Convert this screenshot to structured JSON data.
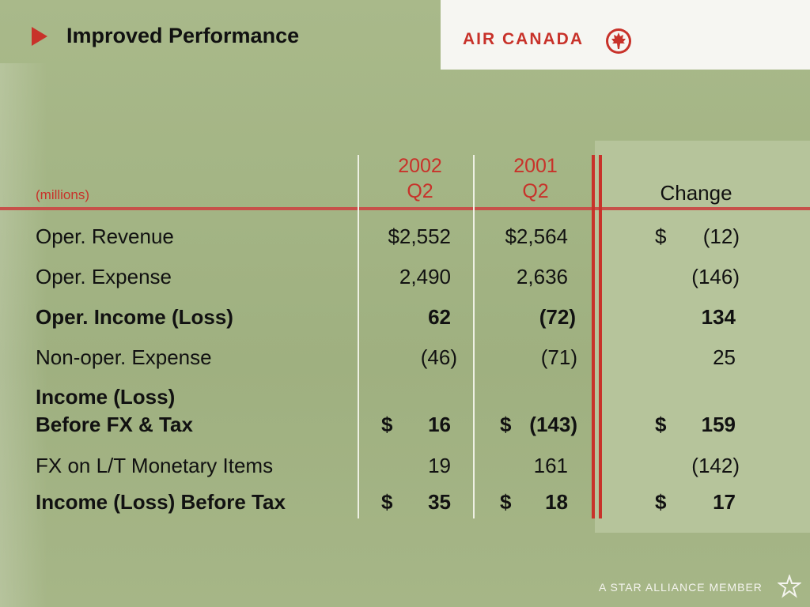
{
  "title": "Improved Performance",
  "logo": {
    "text": "AIR CANADA"
  },
  "footer": {
    "star_alliance": "A STAR ALLIANCE MEMBER"
  },
  "table": {
    "units": "(millions)",
    "columns": [
      {
        "year": "2002",
        "period": "Q2"
      },
      {
        "year": "2001",
        "period": "Q2"
      }
    ],
    "change_header": "Change",
    "rows": [
      {
        "label": "Oper. Revenue",
        "v2002": "$2,552",
        "v2001": "$2,564",
        "change_sign": "$",
        "change": "(12)",
        "bold": false
      },
      {
        "label": "Oper. Expense",
        "v2002": "2,490",
        "v2001": "2,636",
        "change_sign": "",
        "change": "(146)",
        "bold": false
      },
      {
        "label": "Oper. Income (Loss)",
        "v2002": "62",
        "v2001": "(72)",
        "change_sign": "",
        "change": "134",
        "bold": true
      },
      {
        "label": "Non-oper. Expense",
        "v2002": "(46)",
        "v2001": "(71)",
        "change_sign": "",
        "change": "25",
        "bold": false
      },
      {
        "label_line1": "Income (Loss)",
        "label_line2": "Before FX & Tax",
        "v2002_sign": "$",
        "v2002": "16",
        "v2001_sign": "$",
        "v2001": "(143)",
        "change_sign": "$",
        "change": "159",
        "bold": true
      },
      {
        "label": "FX on L/T Monetary Items",
        "v2002": "19",
        "v2001": "161",
        "change_sign": "",
        "change": "(142)",
        "bold": false
      },
      {
        "label": "Income (Loss) Before Tax",
        "v2002_sign": "$",
        "v2002": "35",
        "v2001_sign": "$",
        "v2001": "18",
        "change_sign": "$",
        "change": "17",
        "bold": true
      }
    ]
  },
  "colors": {
    "accent": "#c8322a",
    "background": "#a4b585",
    "panel": "#b6c49b"
  }
}
